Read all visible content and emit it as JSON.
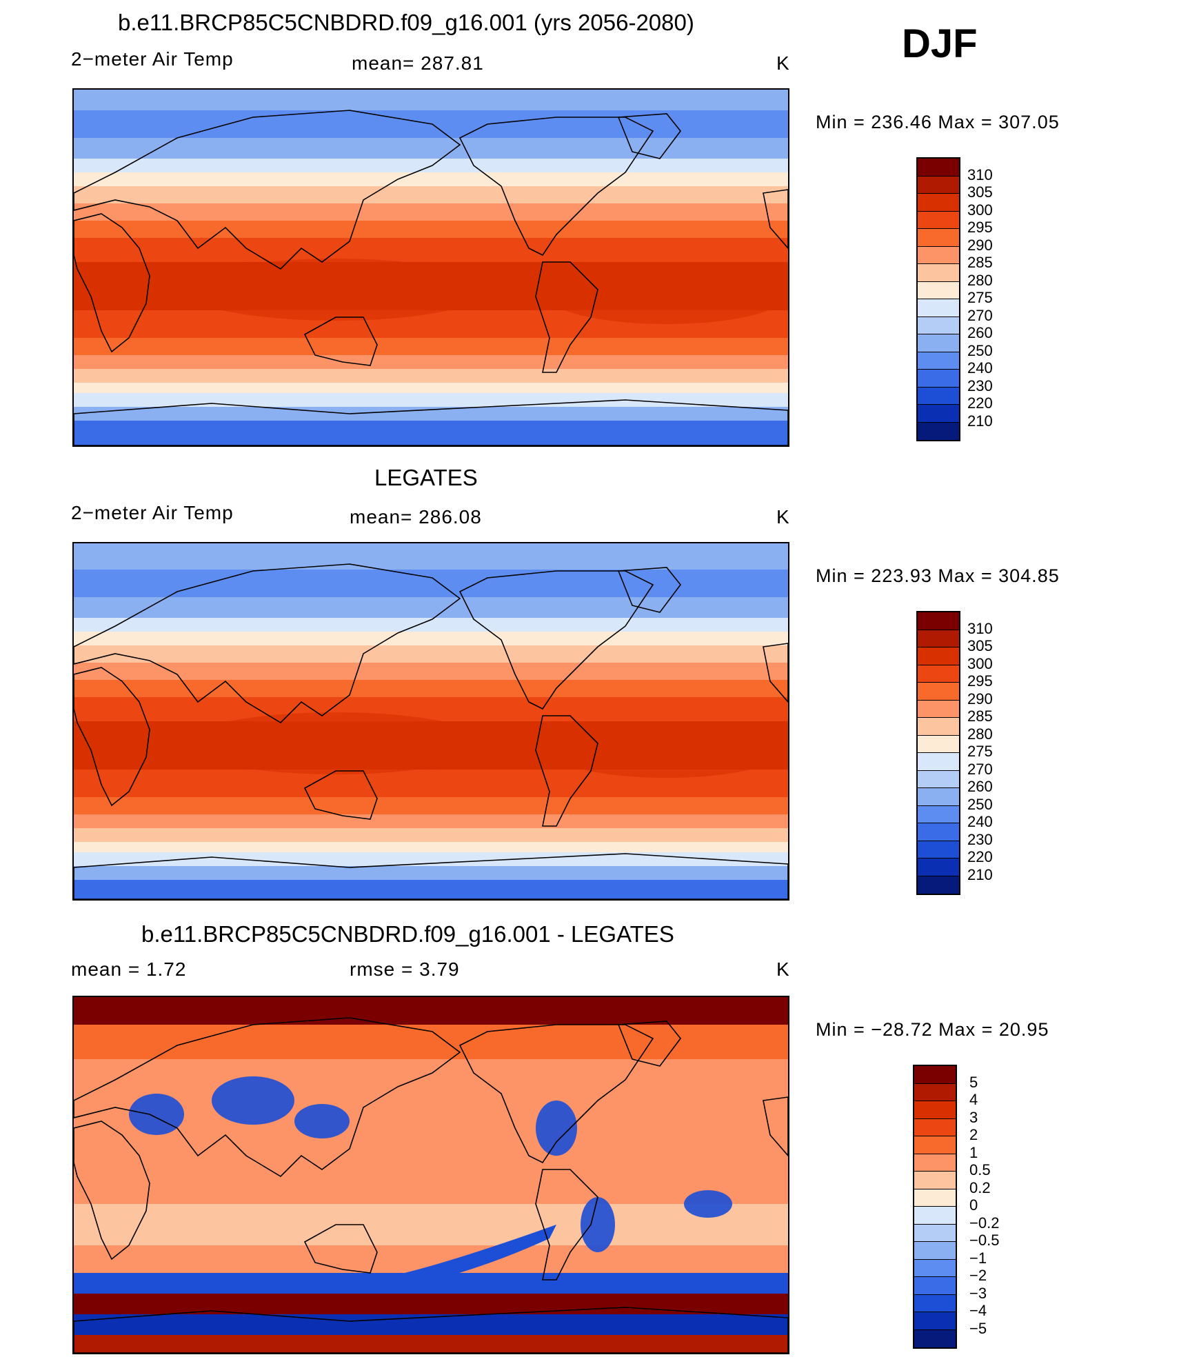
{
  "season": "DJF",
  "panels": [
    {
      "title": "b.e11.BRCP85C5CNBDRD.f09_g16.001 (yrs 2056-2080)",
      "variable": "2−meter Air Temp",
      "stat_text": "mean=  287.81",
      "units": "K",
      "minmax": "Min  =  236.46  Max  =  307.05",
      "colorbar": {
        "labels": [
          "310",
          "305",
          "300",
          "295",
          "290",
          "285",
          "280",
          "275",
          "270",
          "260",
          "250",
          "240",
          "230",
          "220",
          "210"
        ],
        "colors": [
          "#7a0000",
          "#b01a00",
          "#d93000",
          "#ec4612",
          "#f86a2c",
          "#fc9468",
          "#fdc4a0",
          "#fdebd6",
          "#d8e8fa",
          "#b4cdf6",
          "#8ab0f2",
          "#5d8df0",
          "#3b6ce8",
          "#1d4ed6",
          "#0a2fb2",
          "#061a7c"
        ]
      },
      "map_style": "model"
    },
    {
      "title": "LEGATES",
      "variable": "2−meter Air Temp",
      "stat_text": "mean=  286.08",
      "units": "K",
      "minmax": "Min  =  223.93  Max  =  304.85",
      "colorbar": {
        "labels": [
          "310",
          "305",
          "300",
          "295",
          "290",
          "285",
          "280",
          "275",
          "270",
          "260",
          "250",
          "240",
          "230",
          "220",
          "210"
        ],
        "colors": [
          "#7a0000",
          "#b01a00",
          "#d93000",
          "#ec4612",
          "#f86a2c",
          "#fc9468",
          "#fdc4a0",
          "#fdebd6",
          "#d8e8fa",
          "#b4cdf6",
          "#8ab0f2",
          "#5d8df0",
          "#3b6ce8",
          "#1d4ed6",
          "#0a2fb2",
          "#061a7c"
        ]
      },
      "map_style": "obs"
    },
    {
      "title": "b.e11.BRCP85C5CNBDRD.f09_g16.001 - LEGATES",
      "variable": "mean =     1.72",
      "stat_text": "rmse =     3.79",
      "units": "K",
      "minmax": "Min  =  −28.72  Max  =    20.95",
      "colorbar": {
        "labels": [
          "5",
          "4",
          "3",
          "2",
          "1",
          "0.5",
          "0.2",
          "0",
          "−0.2",
          "−0.5",
          "−1",
          "−2",
          "−3",
          "−4",
          "−5"
        ],
        "colors": [
          "#7a0000",
          "#b01a00",
          "#d93000",
          "#ec4612",
          "#f86a2c",
          "#fc9468",
          "#fdc4a0",
          "#fdebd6",
          "#d8e8fa",
          "#b4cdf6",
          "#8ab0f2",
          "#5d8df0",
          "#3b6ce8",
          "#1d4ed6",
          "#0a2fb2",
          "#061a7c"
        ]
      },
      "map_style": "diff"
    }
  ]
}
